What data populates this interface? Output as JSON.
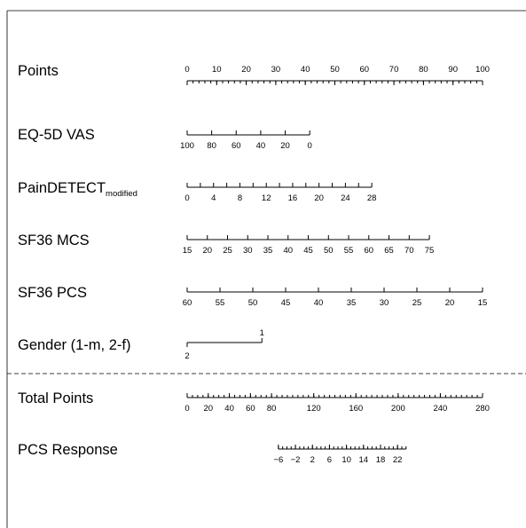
{
  "chart_data": {
    "type": "nomogram",
    "scales": [
      {
        "id": "points",
        "label": "Points",
        "ticks": [
          0,
          10,
          20,
          30,
          40,
          50,
          60,
          70,
          80,
          90,
          100
        ],
        "tick_labels": [
          "0",
          "10",
          "20",
          "30",
          "40",
          "50",
          "60",
          "70",
          "80",
          "90",
          "100"
        ],
        "points_range": [
          0,
          100
        ],
        "value_range": [
          0,
          100
        ],
        "minor_step": 2
      },
      {
        "id": "eq5d-vas",
        "label": "EQ-5D VAS",
        "ticks": [
          100,
          80,
          60,
          40,
          20,
          0
        ],
        "tick_labels": [
          "100",
          "80",
          "60",
          "40",
          "20",
          "0"
        ],
        "points_range": [
          0,
          41.5
        ],
        "value_range": [
          100,
          0
        ]
      },
      {
        "id": "paindetect",
        "label": "PainDETECT",
        "label_sub": "modified",
        "ticks": [
          0,
          2,
          4,
          6,
          8,
          10,
          12,
          14,
          16,
          18,
          20,
          22,
          24,
          26,
          28
        ],
        "tick_labels": [
          "0",
          "4",
          "8",
          "12",
          "16",
          "20",
          "24",
          "28"
        ],
        "labeled_ticks": [
          0,
          4,
          8,
          12,
          16,
          20,
          24,
          28
        ],
        "points_range": [
          0,
          62.5
        ],
        "value_range": [
          0,
          28
        ]
      },
      {
        "id": "sf36-mcs",
        "label": "SF36 MCS",
        "ticks": [
          15,
          20,
          25,
          30,
          35,
          40,
          45,
          50,
          55,
          60,
          65,
          70,
          75
        ],
        "tick_labels": [
          "15",
          "20",
          "25",
          "30",
          "35",
          "40",
          "45",
          "50",
          "55",
          "60",
          "65",
          "70",
          "75"
        ],
        "points_range": [
          0,
          82
        ],
        "value_range": [
          15,
          75
        ]
      },
      {
        "id": "sf36-pcs",
        "label": "SF36 PCS",
        "ticks": [
          60,
          55,
          50,
          45,
          40,
          35,
          30,
          25,
          20,
          15
        ],
        "tick_labels": [
          "60",
          "55",
          "50",
          "45",
          "40",
          "35",
          "30",
          "25",
          "20",
          "15"
        ],
        "points_range": [
          0,
          100
        ],
        "value_range": [
          60,
          15
        ]
      },
      {
        "id": "gender",
        "label": "Gender (1-m, 2-f)",
        "levels": [
          {
            "label": "1",
            "points": 25.3
          },
          {
            "label": "2",
            "points": 0
          }
        ]
      },
      {
        "id": "total-points",
        "label": "Total Points",
        "ticks": [
          0,
          20,
          40,
          60,
          80,
          120,
          160,
          200,
          240,
          280
        ],
        "tick_labels": [
          "0",
          "20",
          "40",
          "60",
          "80",
          "120",
          "160",
          "200",
          "240",
          "280"
        ],
        "points_range": [
          0,
          100
        ],
        "value_range": [
          0,
          280
        ],
        "minor_step": 5
      },
      {
        "id": "pcs-response",
        "label": "PCS Response",
        "ticks": [
          -6,
          -2,
          2,
          6,
          10,
          14,
          18,
          22
        ],
        "tick_labels": [
          "−6",
          "−2",
          "2",
          "6",
          "10",
          "14",
          "18",
          "22"
        ],
        "value_range": [
          -6,
          24
        ],
        "total_points_range": [
          86.5,
          207.5
        ],
        "minor_step": 1
      }
    ]
  }
}
